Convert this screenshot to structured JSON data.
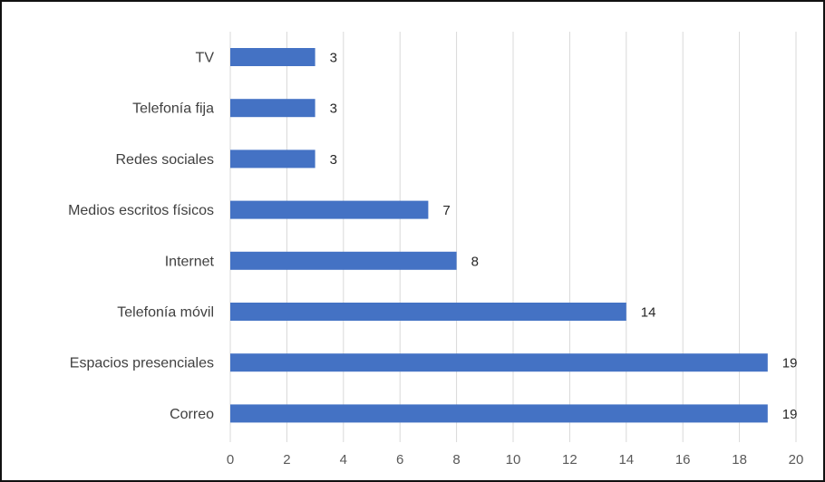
{
  "chart_data": {
    "type": "bar",
    "orientation": "horizontal",
    "categories": [
      "TV",
      "Telefonía fija",
      "Redes sociales",
      "Medios escritos físicos",
      "Internet",
      "Telefonía móvil",
      "Espacios presenciales",
      "Correo"
    ],
    "values": [
      3,
      3,
      3,
      7,
      8,
      14,
      19,
      19
    ],
    "data_labels": [
      "3",
      "3",
      "3",
      "7",
      "8",
      "14",
      "19",
      "19"
    ],
    "xlim": [
      0,
      20
    ],
    "x_ticks": [
      "0",
      "2",
      "4",
      "6",
      "8",
      "10",
      "12",
      "14",
      "16",
      "18",
      "20"
    ],
    "grid": "vertical",
    "legend": "none",
    "bar_color": "#4472C4",
    "grid_color": "#D9D9D9"
  }
}
